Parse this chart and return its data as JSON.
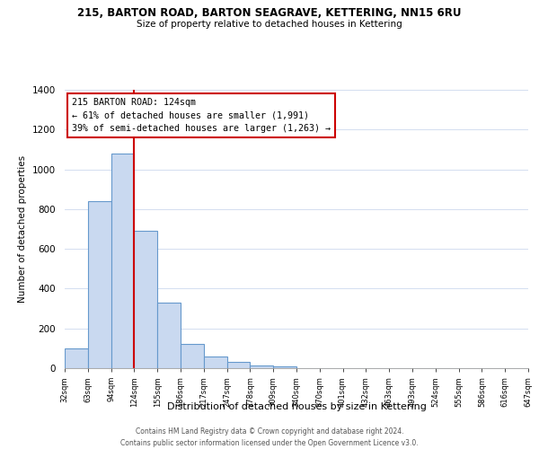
{
  "title": "215, BARTON ROAD, BARTON SEAGRAVE, KETTERING, NN15 6RU",
  "subtitle": "Size of property relative to detached houses in Kettering",
  "xlabel": "Distribution of detached houses by size in Kettering",
  "ylabel": "Number of detached properties",
  "bar_values": [
    100,
    840,
    1080,
    690,
    330,
    120,
    60,
    30,
    15,
    10,
    0,
    0,
    0,
    0,
    0,
    0,
    0,
    0,
    0,
    0
  ],
  "bar_labels": [
    "32sqm",
    "63sqm",
    "94sqm",
    "124sqm",
    "155sqm",
    "186sqm",
    "217sqm",
    "247sqm",
    "278sqm",
    "309sqm",
    "340sqm",
    "370sqm",
    "401sqm",
    "432sqm",
    "463sqm",
    "493sqm",
    "524sqm",
    "555sqm",
    "586sqm",
    "616sqm",
    "647sqm"
  ],
  "bar_color": "#c9d9f0",
  "bar_edge_color": "#6699cc",
  "vline_color": "#cc0000",
  "annotation_title": "215 BARTON ROAD: 124sqm",
  "annotation_line1": "← 61% of detached houses are smaller (1,991)",
  "annotation_line2": "39% of semi-detached houses are larger (1,263) →",
  "annotation_box_edge": "#cc0000",
  "ylim": [
    0,
    1400
  ],
  "yticks": [
    0,
    200,
    400,
    600,
    800,
    1000,
    1200,
    1400
  ],
  "footer1": "Contains HM Land Registry data © Crown copyright and database right 2024.",
  "footer2": "Contains public sector information licensed under the Open Government Licence v3.0."
}
